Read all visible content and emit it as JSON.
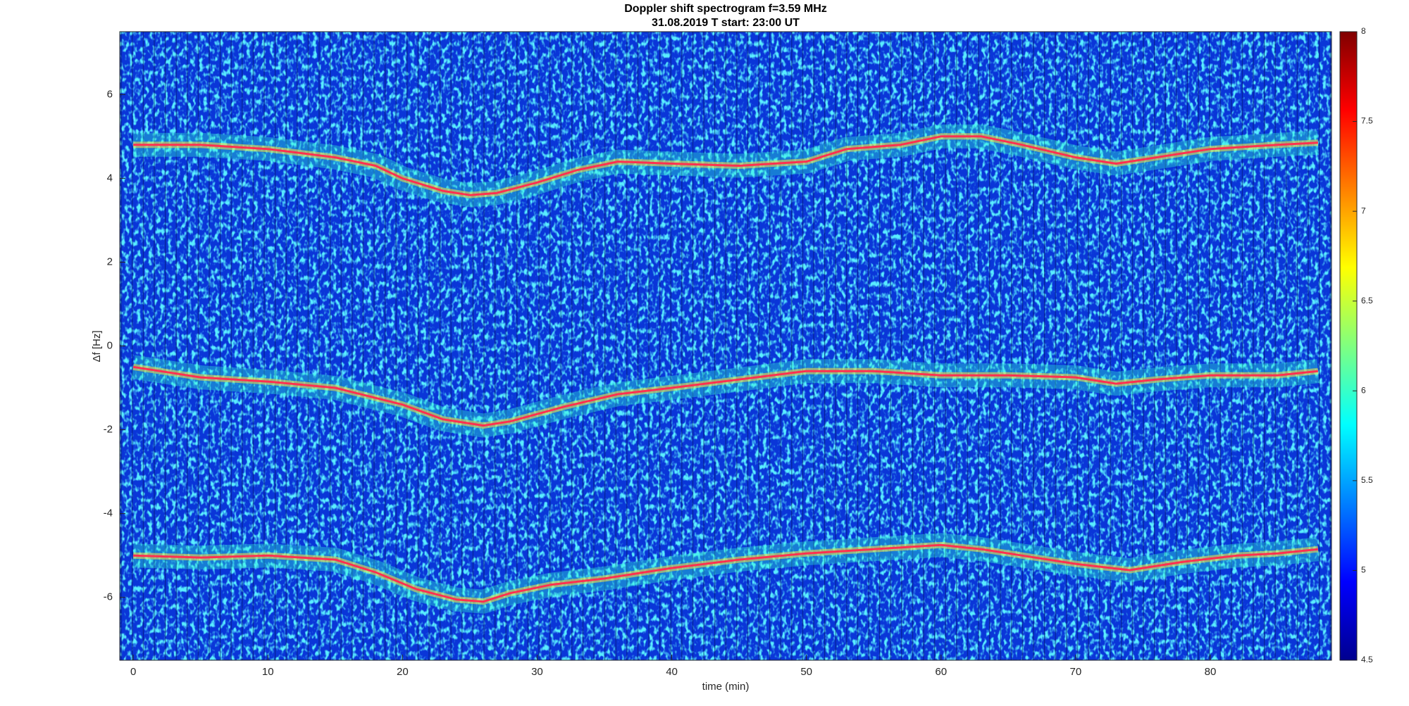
{
  "chart_data": {
    "type": "spectrogram",
    "title": "Doppler shift spectrogram f=3.59 MHz",
    "subtitle": "31.08.2019   T start: 23:00 UT",
    "xlabel": "time (min)",
    "ylabel": "Δf [Hz]",
    "xlim": [
      -1,
      89
    ],
    "xticks": [
      0,
      10,
      20,
      30,
      40,
      50,
      60,
      70,
      80
    ],
    "ylim": [
      -7.5,
      7.5
    ],
    "yticks": [
      -6,
      -4,
      -2,
      0,
      2,
      4,
      6
    ],
    "clim": [
      4.5,
      8
    ],
    "cticks": [
      4.5,
      5,
      5.5,
      6,
      6.5,
      7,
      7.5,
      8
    ],
    "series": [
      {
        "color": "#ff3050",
        "x": [
          0,
          5,
          10,
          15,
          18,
          20,
          23,
          25,
          27,
          30,
          33,
          36,
          40,
          45,
          50,
          53,
          57,
          60,
          63,
          66,
          70,
          73,
          76,
          80,
          85,
          88
        ],
        "values": [
          4.8,
          4.8,
          4.7,
          4.5,
          4.3,
          4.0,
          3.7,
          3.6,
          3.65,
          3.9,
          4.2,
          4.4,
          4.35,
          4.3,
          4.4,
          4.7,
          4.8,
          5.0,
          5.0,
          4.8,
          4.5,
          4.35,
          4.5,
          4.7,
          4.8,
          4.85
        ]
      },
      {
        "color": "#ff3050",
        "x": [
          0,
          5,
          10,
          15,
          20,
          23,
          26,
          28,
          32,
          36,
          40,
          45,
          50,
          55,
          60,
          65,
          70,
          73,
          76,
          80,
          85,
          88
        ],
        "values": [
          -0.5,
          -0.75,
          -0.85,
          -1.0,
          -1.4,
          -1.75,
          -1.9,
          -1.8,
          -1.45,
          -1.15,
          -1.0,
          -0.8,
          -0.6,
          -0.6,
          -0.7,
          -0.7,
          -0.75,
          -0.9,
          -0.8,
          -0.7,
          -0.7,
          -0.6
        ]
      },
      {
        "color": "#ff3050",
        "x": [
          0,
          5,
          10,
          15,
          18,
          21,
          24,
          26,
          28,
          31,
          35,
          40,
          45,
          50,
          55,
          60,
          63,
          66,
          70,
          74,
          78,
          82,
          85,
          88
        ],
        "values": [
          -5.0,
          -5.05,
          -5.0,
          -5.1,
          -5.4,
          -5.8,
          -6.05,
          -6.1,
          -5.9,
          -5.7,
          -5.55,
          -5.3,
          -5.1,
          -4.95,
          -4.85,
          -4.75,
          -4.85,
          -5.0,
          -5.2,
          -5.35,
          -5.15,
          -5.0,
          -4.95,
          -4.85
        ]
      }
    ]
  }
}
